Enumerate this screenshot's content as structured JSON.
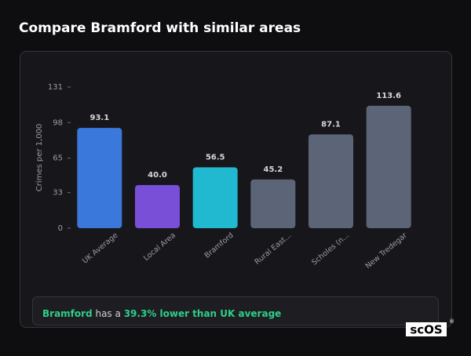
{
  "header": {
    "title": "Compare Bramford with similar areas"
  },
  "chart_data": {
    "type": "bar",
    "y_label": "Crimes per 1,000",
    "categories": [
      "UK Average",
      "Local Area",
      "Bramford",
      "Rural East...",
      "Scholes (n...",
      "New Tredegar"
    ],
    "values": [
      93.1,
      40.0,
      56.5,
      45.2,
      87.1,
      113.6
    ],
    "value_labels": [
      "93.1",
      "40.0",
      "56.5",
      "45.2",
      "87.1",
      "113.6"
    ],
    "colors": [
      "#3b78dc",
      "#7a4fd8",
      "#20b9d0",
      "#5b6577",
      "#5b6577",
      "#5b6577"
    ],
    "ylim": [
      0,
      131
    ],
    "yticks": [
      0,
      33,
      65,
      98,
      131
    ]
  },
  "summary": {
    "subject": "Bramford",
    "text": "has a",
    "highlight": "39.3% lower than UK average"
  },
  "logo": {
    "text": "scOS",
    "mark": "®"
  }
}
